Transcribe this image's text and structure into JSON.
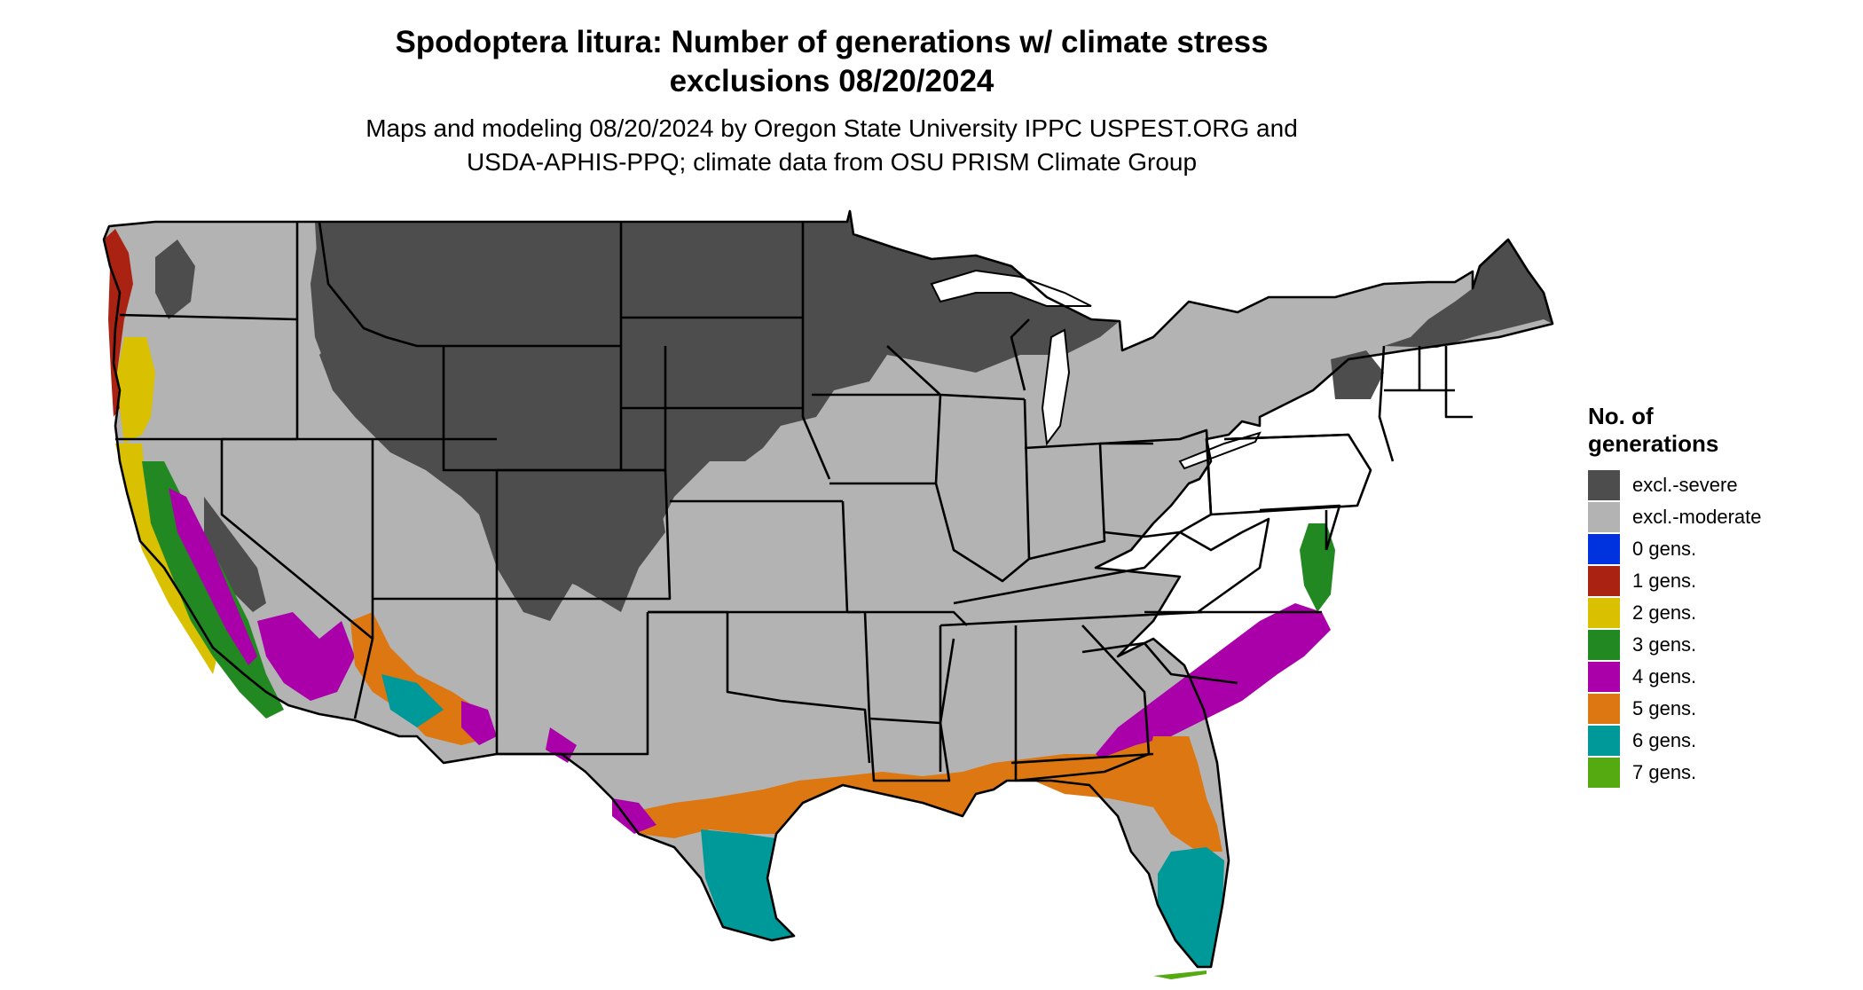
{
  "title_lines": [
    "Spodoptera litura: Number of generations w/ climate stress",
    "exclusions 08/20/2024"
  ],
  "subtitle_lines": [
    "Maps and modeling 08/20/2024 by Oregon State University IPPC USPEST.ORG and",
    "USDA-APHIS-PPQ; climate data from OSU PRISM Climate Group"
  ],
  "legend": {
    "title_lines": [
      "No. of",
      "generations"
    ],
    "items": [
      {
        "label": "excl.-severe",
        "color": "#4d4d4d"
      },
      {
        "label": "excl.-moderate",
        "color": "#b3b3b3"
      },
      {
        "label": "0 gens.",
        "color": "#0033dd"
      },
      {
        "label": "1 gens.",
        "color": "#aa2211"
      },
      {
        "label": "2 gens.",
        "color": "#d9c000"
      },
      {
        "label": "3 gens.",
        "color": "#228822"
      },
      {
        "label": "4 gens.",
        "color": "#aa00aa"
      },
      {
        "label": "5 gens.",
        "color": "#dd7711"
      },
      {
        "label": "6 gens.",
        "color": "#009999"
      },
      {
        "label": "7 gens.",
        "color": "#55aa11"
      }
    ]
  },
  "map": {
    "region": "Contiguous United States",
    "colors": {
      "excl_severe": "#4d4d4d",
      "excl_moderate": "#b3b3b3",
      "gen1": "#aa2211",
      "gen2": "#d9c000",
      "gen3": "#228822",
      "gen4": "#aa00aa",
      "gen5": "#dd7711",
      "gen6": "#009999",
      "gen7": "#55aa11",
      "border": "#000000"
    }
  }
}
